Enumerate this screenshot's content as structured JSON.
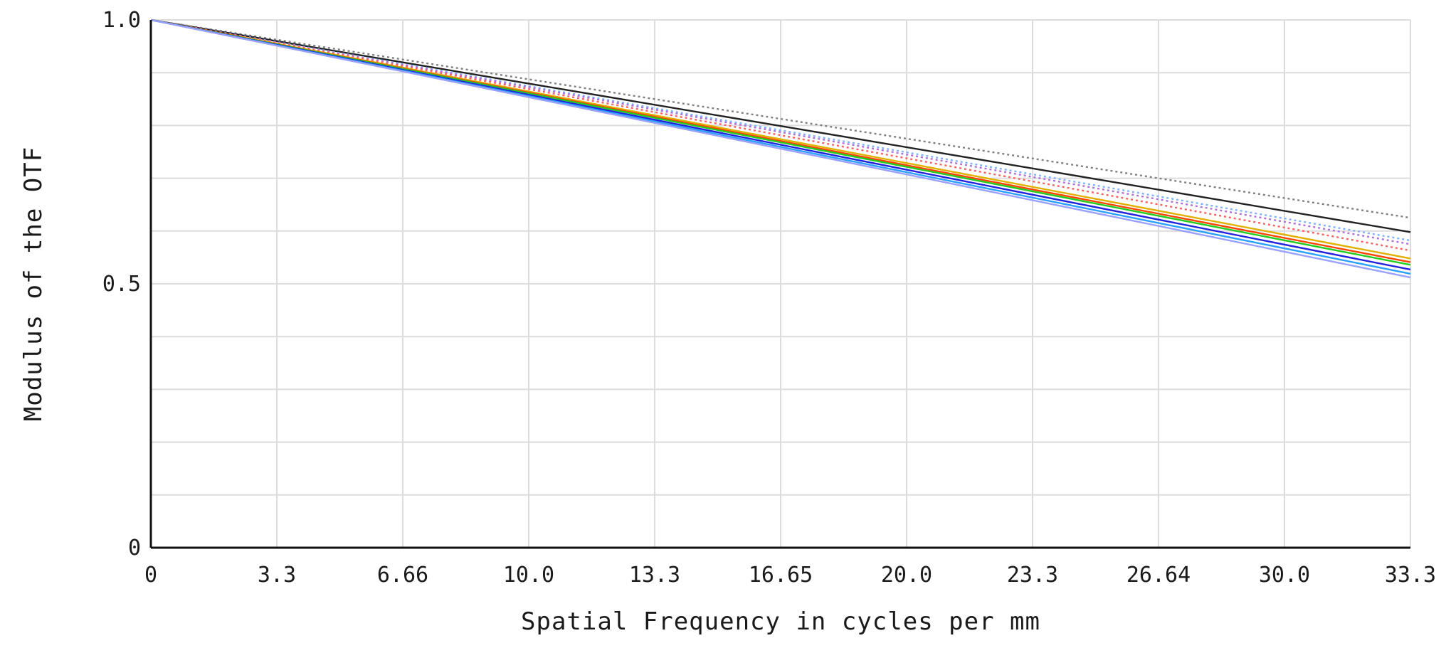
{
  "chart_data": {
    "type": "line",
    "xlabel": "Spatial Frequency in cycles per mm",
    "ylabel": "Modulus of the OTF",
    "xlim": [
      0,
      33.3
    ],
    "ylim": [
      0,
      1.0
    ],
    "x_ticks": [
      0,
      3.33,
      6.66,
      9.99,
      13.32,
      16.65,
      19.98,
      23.31,
      26.64,
      29.97,
      33.3
    ],
    "x_tick_labels": [
      "0",
      "3.3",
      "6.66",
      "10.0",
      "13.3",
      "16.65",
      "20.0",
      "23.3",
      "26.64",
      "30.0",
      "33.3"
    ],
    "y_ticks": [
      0,
      0.5,
      1.0
    ],
    "y_tick_labels": [
      "0",
      "0.5",
      "1.0"
    ],
    "y_grid": [
      0,
      0.1,
      0.2,
      0.3,
      0.4,
      0.5,
      0.6,
      0.7,
      0.8,
      0.9,
      1.0
    ],
    "grid": true,
    "legend": "none",
    "series": [
      {
        "color": "#808080",
        "dashed": true,
        "x": [
          0,
          33.3
        ],
        "y": [
          1.0,
          0.625
        ]
      },
      {
        "color": "#222222",
        "dashed": false,
        "x": [
          0,
          33.3
        ],
        "y": [
          1.0,
          0.598
        ]
      },
      {
        "color": "#7fb3ff",
        "dashed": true,
        "x": [
          0,
          33.3
        ],
        "y": [
          1.0,
          0.582
        ]
      },
      {
        "color": "#b070d8",
        "dashed": true,
        "x": [
          0,
          33.3
        ],
        "y": [
          1.0,
          0.575
        ]
      },
      {
        "color": "#ff6060",
        "dashed": true,
        "x": [
          0,
          33.3
        ],
        "y": [
          1.0,
          0.563
        ]
      },
      {
        "color": "#e0b000",
        "dashed": false,
        "x": [
          0,
          33.3
        ],
        "y": [
          1.0,
          0.548
        ]
      },
      {
        "color": "#ff4400",
        "dashed": false,
        "x": [
          0,
          33.3
        ],
        "y": [
          1.0,
          0.541
        ]
      },
      {
        "color": "#22cc22",
        "dashed": false,
        "x": [
          0,
          33.3
        ],
        "y": [
          1.0,
          0.536
        ]
      },
      {
        "color": "#2222dd",
        "dashed": false,
        "x": [
          0,
          33.3
        ],
        "y": [
          1.0,
          0.527
        ]
      },
      {
        "color": "#2aa0ff",
        "dashed": false,
        "x": [
          0,
          33.3
        ],
        "y": [
          1.0,
          0.519
        ]
      },
      {
        "color": "#9aa0ff",
        "dashed": false,
        "x": [
          0,
          33.3
        ],
        "y": [
          1.0,
          0.512
        ]
      }
    ]
  }
}
